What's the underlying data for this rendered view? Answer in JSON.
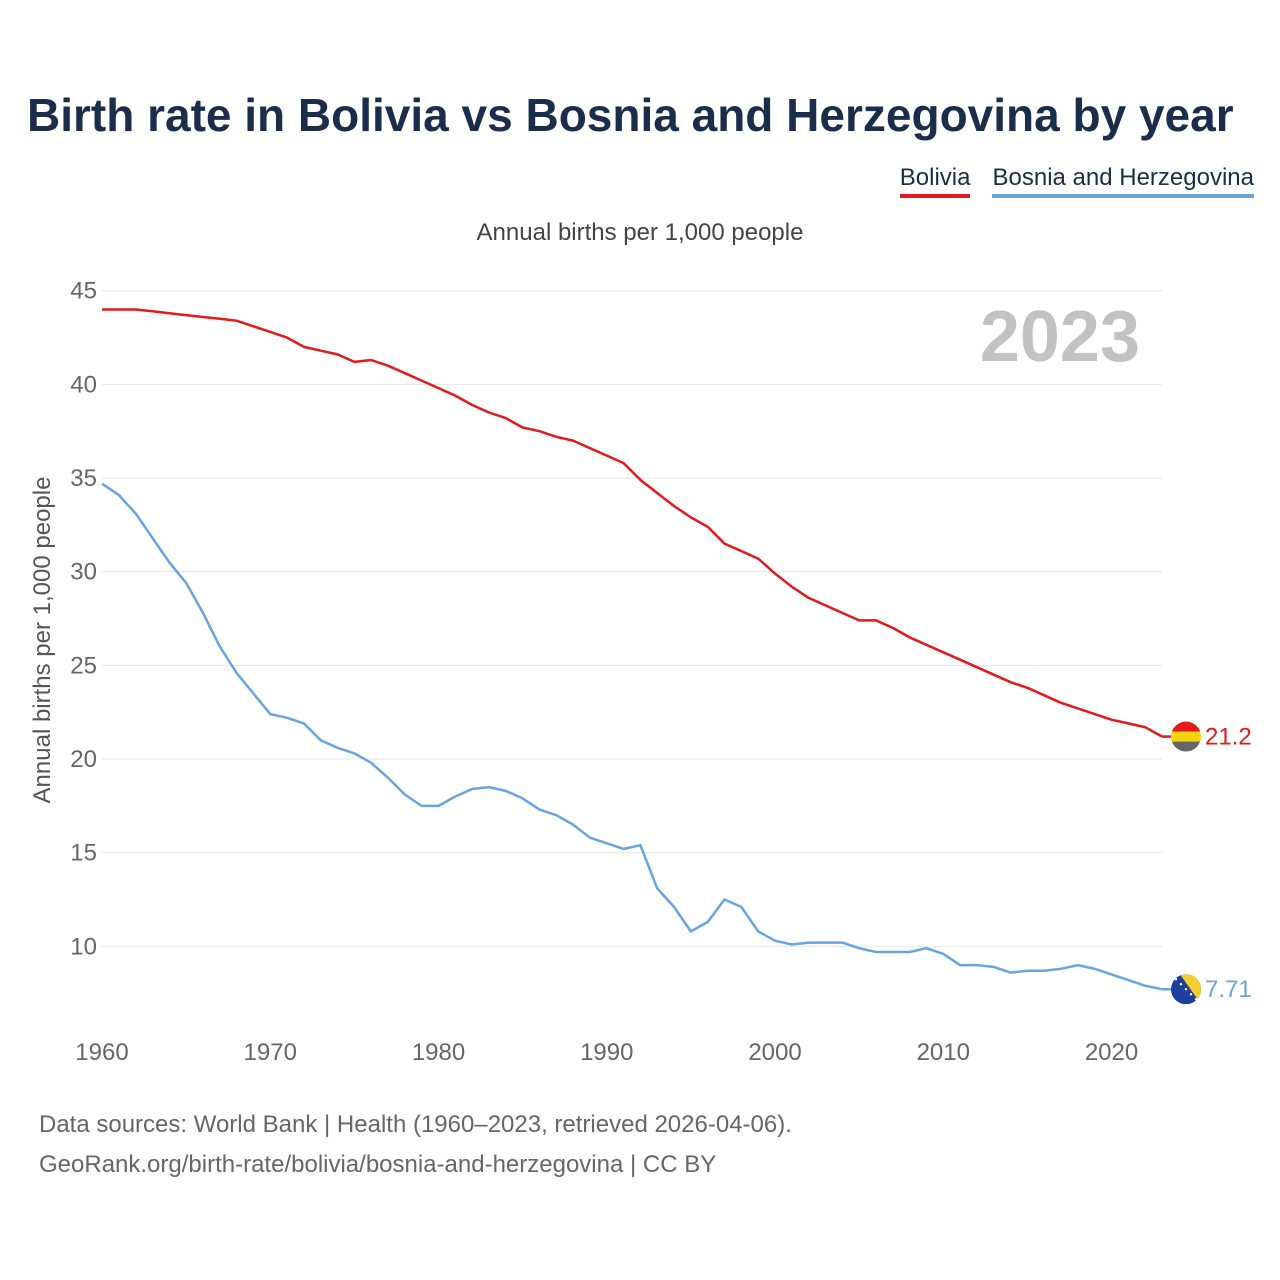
{
  "title": "Birth rate in Bolivia vs Bosnia and Herzegovina by year",
  "legend": {
    "items": [
      {
        "name": "Bolivia",
        "color": "#e3191b"
      },
      {
        "name": "Bosnia and Herzegovina",
        "color": "#6aa4e0"
      }
    ]
  },
  "footer": {
    "line1": "Data sources: World Bank | Health (1960–2023, retrieved 2026-04-06).",
    "line2": "GeoRank.org/birth-rate/bolivia/bosnia-and-herzegovina | CC BY"
  },
  "chart_data": {
    "type": "line",
    "title": "Annual births per 1,000 people",
    "xlabel": "",
    "ylabel": "Annual births per 1,000 people",
    "year_label": "2023",
    "xlim": [
      1960,
      2023
    ],
    "ylim": [
      5,
      46
    ],
    "xticks": [
      1960,
      1970,
      1980,
      1990,
      2000,
      2010,
      2020
    ],
    "yticks": [
      10,
      15,
      20,
      25,
      30,
      35,
      40,
      45
    ],
    "grid": true,
    "legend_position": "top-right",
    "x": [
      1960,
      1961,
      1962,
      1963,
      1964,
      1965,
      1966,
      1967,
      1968,
      1969,
      1970,
      1971,
      1972,
      1973,
      1974,
      1975,
      1976,
      1977,
      1978,
      1979,
      1980,
      1981,
      1982,
      1983,
      1984,
      1985,
      1986,
      1987,
      1988,
      1989,
      1990,
      1991,
      1992,
      1993,
      1994,
      1995,
      1996,
      1997,
      1998,
      1999,
      2000,
      2001,
      2002,
      2003,
      2004,
      2005,
      2006,
      2007,
      2008,
      2009,
      2010,
      2011,
      2012,
      2013,
      2014,
      2015,
      2016,
      2017,
      2018,
      2019,
      2020,
      2021,
      2022,
      2023
    ],
    "series": [
      {
        "name": "Bolivia",
        "color": "#e3191b",
        "end_label": "21.2",
        "values": [
          44.0,
          44.0,
          44.0,
          43.9,
          43.8,
          43.7,
          43.6,
          43.5,
          43.4,
          43.1,
          42.8,
          42.5,
          42.0,
          41.8,
          41.6,
          41.2,
          41.3,
          41.0,
          40.6,
          40.2,
          39.8,
          39.4,
          38.9,
          38.5,
          38.2,
          37.7,
          37.5,
          37.2,
          37.0,
          36.6,
          36.2,
          35.8,
          34.9,
          34.2,
          33.5,
          32.9,
          32.4,
          31.5,
          31.1,
          30.7,
          29.9,
          29.2,
          28.6,
          28.2,
          27.8,
          27.4,
          27.4,
          27.0,
          26.5,
          26.1,
          25.7,
          25.3,
          24.9,
          24.5,
          24.1,
          23.8,
          23.4,
          23.0,
          22.7,
          22.4,
          22.1,
          21.9,
          21.7,
          21.2
        ]
      },
      {
        "name": "Bosnia and Herzegovina",
        "color": "#6aa4e0",
        "end_label": "7.71",
        "values": [
          34.7,
          34.1,
          33.1,
          31.8,
          30.5,
          29.4,
          27.8,
          26.0,
          24.6,
          23.5,
          22.4,
          22.2,
          21.9,
          21.0,
          20.6,
          20.3,
          19.8,
          19.0,
          18.1,
          17.5,
          17.5,
          18.0,
          18.4,
          18.5,
          18.3,
          17.9,
          17.3,
          17.0,
          16.5,
          15.8,
          15.5,
          15.2,
          15.4,
          13.1,
          12.1,
          10.8,
          11.3,
          12.5,
          12.1,
          10.8,
          10.3,
          10.1,
          10.2,
          10.2,
          10.2,
          9.9,
          9.7,
          9.7,
          9.7,
          9.9,
          9.6,
          9.0,
          9.0,
          8.9,
          8.6,
          8.7,
          8.7,
          8.8,
          9.0,
          8.8,
          8.5,
          8.2,
          7.9,
          7.71
        ]
      }
    ]
  }
}
